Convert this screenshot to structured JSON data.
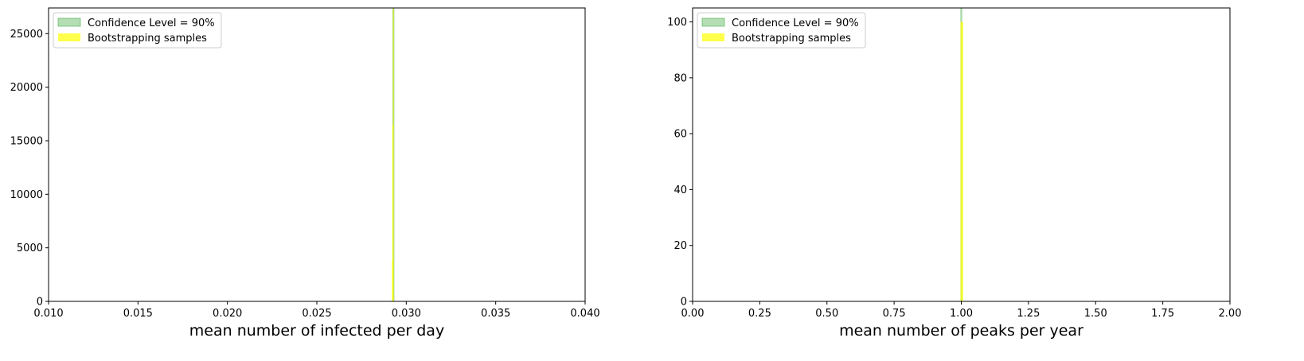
{
  "colors": {
    "confidence_fill": "#2ca02c",
    "bootstrap_fill": "#ffff00",
    "axes": "#000000",
    "background": "#ffffff"
  },
  "chart_data": [
    {
      "type": "bar",
      "xlabel": "mean number of infected per day",
      "ylabel": "",
      "xlim": [
        0.01,
        0.04
      ],
      "ylim": [
        0,
        27400
      ],
      "xticks": [
        0.01,
        0.015,
        0.02,
        0.025,
        0.03,
        0.035,
        0.04
      ],
      "xtick_labels": [
        "0.010",
        "0.015",
        "0.020",
        "0.025",
        "0.030",
        "0.035",
        "0.040"
      ],
      "yticks": [
        0,
        5000,
        10000,
        15000,
        20000,
        25000
      ],
      "ytick_labels": [
        "0",
        "5000",
        "10000",
        "15000",
        "20000",
        "25000"
      ],
      "grid": false,
      "legend_position": "upper-left",
      "legend": [
        "Confidence Level = 90%",
        "Bootstrapping samples"
      ],
      "confidence_interval": {
        "label": "Confidence Level = 90%",
        "low": 0.02924,
        "high": 0.02932
      },
      "series": [
        {
          "name": "Bootstrapping samples",
          "bins": [
            {
              "x0": 0.0292,
              "x1": 0.02922,
              "count": 3800
            },
            {
              "x0": 0.02922,
              "x1": 0.02925,
              "count": 16500
            },
            {
              "x0": 0.02925,
              "x1": 0.02927,
              "count": 27400
            }
          ]
        }
      ]
    },
    {
      "type": "bar",
      "xlabel": "mean number of peaks per year",
      "ylabel": "",
      "xlim": [
        0.0,
        2.0
      ],
      "ylim": [
        0,
        105
      ],
      "xticks": [
        0.0,
        0.25,
        0.5,
        0.75,
        1.0,
        1.25,
        1.5,
        1.75,
        2.0
      ],
      "xtick_labels": [
        "0.00",
        "0.25",
        "0.50",
        "0.75",
        "1.00",
        "1.25",
        "1.50",
        "1.75",
        "2.00"
      ],
      "yticks": [
        0,
        20,
        40,
        60,
        80,
        100
      ],
      "ytick_labels": [
        "0",
        "20",
        "40",
        "60",
        "80",
        "100"
      ],
      "grid": false,
      "legend_position": "upper-left",
      "legend": [
        "Confidence Level = 90%",
        "Bootstrapping samples"
      ],
      "confidence_interval": {
        "label": "Confidence Level = 90%",
        "low": 0.998,
        "high": 1.002
      },
      "series": [
        {
          "name": "Bootstrapping samples",
          "bins": [
            {
              "x0": 0.997,
              "x1": 1.007,
              "count": 100
            }
          ]
        }
      ]
    }
  ]
}
